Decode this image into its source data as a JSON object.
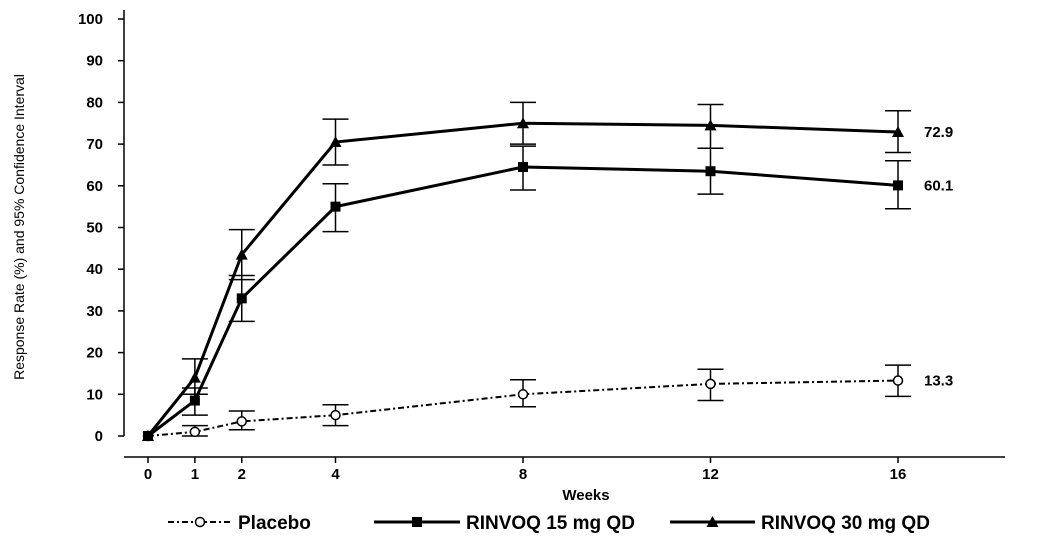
{
  "chart_data": {
    "type": "line",
    "xlabel": "Weeks",
    "ylabel": "Response Rate (%) and 95% Confidence Interval",
    "xlim": [
      -0.5,
      20.5
    ],
    "ylim": [
      0,
      100
    ],
    "x_ticks": [
      0,
      1,
      2,
      4,
      8,
      12,
      16
    ],
    "y_ticks": [
      0,
      10,
      20,
      30,
      40,
      50,
      60,
      70,
      80,
      90,
      100
    ],
    "grid": false,
    "legend_position": "bottom",
    "series": [
      {
        "name": "Placebo",
        "style": "dotted",
        "marker": "open-circle",
        "color": "#000000",
        "x": [
          0,
          1,
          2,
          4,
          8,
          12,
          16
        ],
        "values": [
          0,
          1,
          3.5,
          5,
          10,
          12.5,
          13.3
        ],
        "ci_low": [
          0,
          0,
          1.5,
          2.5,
          7,
          8.5,
          9.5
        ],
        "ci_high": [
          0,
          2.5,
          6,
          7.5,
          13.5,
          16,
          17
        ],
        "end_label": "13.3"
      },
      {
        "name": "RINVOQ 15 mg QD",
        "style": "solid",
        "marker": "filled-square",
        "color": "#000000",
        "x": [
          0,
          1,
          2,
          4,
          8,
          12,
          16
        ],
        "values": [
          0,
          8.5,
          33,
          55,
          64.5,
          63.5,
          60.1
        ],
        "ci_low": [
          0,
          5,
          27.5,
          49,
          59,
          58,
          54.5
        ],
        "ci_high": [
          0,
          11.5,
          38.5,
          60.5,
          69.5,
          69,
          66
        ],
        "end_label": "60.1"
      },
      {
        "name": "RINVOQ 30 mg QD",
        "style": "solid",
        "marker": "filled-triangle",
        "color": "#000000",
        "x": [
          0,
          1,
          2,
          4,
          8,
          12,
          16
        ],
        "values": [
          0,
          14,
          43.5,
          70.5,
          75,
          74.5,
          72.9
        ],
        "ci_low": [
          0,
          10,
          37.5,
          65,
          70,
          69,
          68
        ],
        "ci_high": [
          0,
          18.5,
          49.5,
          76,
          80,
          79.5,
          78
        ],
        "end_label": "72.9"
      }
    ]
  }
}
